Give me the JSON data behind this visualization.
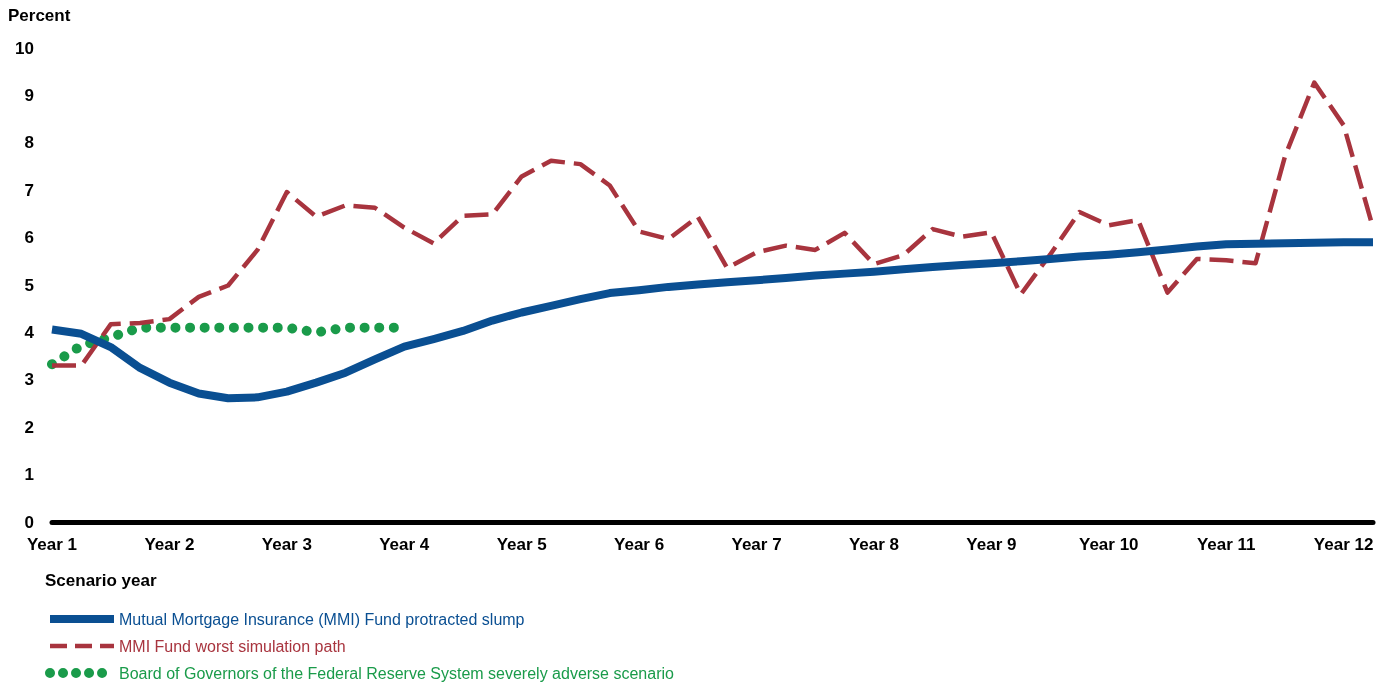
{
  "chart_data": {
    "type": "line",
    "ylabel": "Percent",
    "xlabel": "Scenario year",
    "categories": [
      "Year 1",
      null,
      null,
      null,
      "Year 2",
      null,
      null,
      null,
      "Year 3",
      null,
      null,
      null,
      "Year 4",
      null,
      null,
      null,
      "Year 5",
      null,
      null,
      null,
      "Year 6",
      null,
      null,
      null,
      "Year 7",
      null,
      null,
      null,
      "Year 8",
      null,
      null,
      null,
      "Year 9",
      null,
      null,
      null,
      "Year 10",
      null,
      null,
      null,
      "Year 11",
      null,
      null,
      null,
      "Year 12",
      null
    ],
    "ylim": [
      0,
      10
    ],
    "yticks": [
      0,
      1,
      2,
      3,
      4,
      5,
      6,
      7,
      8,
      9,
      10
    ],
    "grid": false,
    "legend": "bottom left",
    "marker": "none",
    "series": [
      {
        "name": "Mutual Mortgage Insurance (MMI) Fund protracted slump",
        "color": "#0a4f92",
        "line_style": "solid",
        "values": [
          4.06,
          3.97,
          3.69,
          3.25,
          2.94,
          2.71,
          2.61,
          2.63,
          2.75,
          2.94,
          3.15,
          3.43,
          3.7,
          3.86,
          4.03,
          4.25,
          4.42,
          4.56,
          4.7,
          4.83,
          4.89,
          4.96,
          5.01,
          5.06,
          5.1,
          5.15,
          5.2,
          5.24,
          5.28,
          5.33,
          5.38,
          5.42,
          5.46,
          5.5,
          5.55,
          5.6,
          5.64,
          5.69,
          5.75,
          5.81,
          5.86,
          5.87,
          5.88,
          5.89,
          5.9,
          5.9
        ]
      },
      {
        "name": "MMI Fund worst simulation path",
        "color": "#a8343e",
        "line_style": "dashed",
        "values": [
          3.3,
          3.3,
          4.17,
          4.2,
          4.28,
          4.75,
          4.99,
          5.74,
          6.96,
          6.44,
          6.68,
          6.63,
          6.21,
          5.88,
          6.46,
          6.49,
          7.29,
          7.62,
          7.55,
          7.1,
          6.13,
          5.97,
          6.44,
          5.36,
          5.69,
          5.83,
          5.74,
          6.1,
          5.44,
          5.63,
          6.18,
          6.02,
          6.11,
          4.8,
          5.64,
          6.54,
          6.26,
          6.37,
          4.84,
          5.55,
          5.52,
          5.46,
          7.71,
          9.27,
          8.37,
          6.21
        ]
      },
      {
        "name": "Board of Governors of the Federal Reserve System severely adverse scenario",
        "color": "#1a9b4a",
        "line_style": "dotted",
        "values": [
          3.33,
          3.72,
          3.9,
          4.1,
          4.1,
          4.1,
          4.1,
          4.1,
          4.1,
          4.0,
          4.1,
          4.1,
          4.1,
          null,
          null,
          null,
          null,
          null,
          null,
          null,
          null,
          null,
          null,
          null,
          null,
          null,
          null,
          null,
          null,
          null,
          null,
          null,
          null,
          null,
          null,
          null,
          null,
          null,
          null,
          null,
          null,
          null,
          null,
          null,
          null,
          null
        ]
      }
    ]
  }
}
